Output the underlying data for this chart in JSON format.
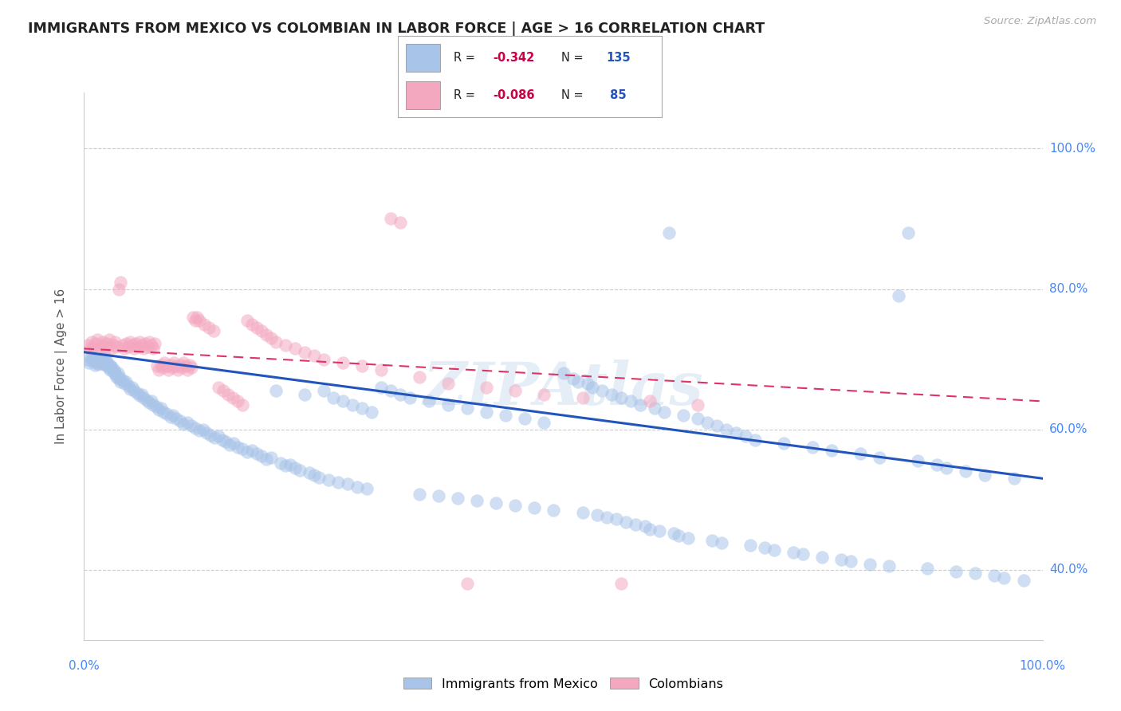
{
  "title": "IMMIGRANTS FROM MEXICO VS COLOMBIAN IN LABOR FORCE | AGE > 16 CORRELATION CHART",
  "source": "Source: ZipAtlas.com",
  "ylabel": "In Labor Force | Age > 16",
  "xlim": [
    0.0,
    1.0
  ],
  "ylim": [
    0.3,
    1.08
  ],
  "blue_color": "#a8c4e8",
  "pink_color": "#f4a8c0",
  "blue_line_color": "#2255bb",
  "pink_line_color": "#dd3366",
  "watermark": "ZIPAtlas",
  "background_color": "#ffffff",
  "grid_color": "#cccccc",
  "title_color": "#222222",
  "axis_label_color": "#4488ff",
  "legend_R_color": "#cc0044",
  "legend_N_color": "#2255bb",
  "blue_scatter": [
    [
      0.003,
      0.7
    ],
    [
      0.005,
      0.695
    ],
    [
      0.007,
      0.702
    ],
    [
      0.008,
      0.698
    ],
    [
      0.01,
      0.705
    ],
    [
      0.011,
      0.692
    ],
    [
      0.012,
      0.7
    ],
    [
      0.013,
      0.695
    ],
    [
      0.014,
      0.698
    ],
    [
      0.015,
      0.693
    ],
    [
      0.016,
      0.7
    ],
    [
      0.017,
      0.696
    ],
    [
      0.018,
      0.702
    ],
    [
      0.019,
      0.694
    ],
    [
      0.02,
      0.698
    ],
    [
      0.021,
      0.705
    ],
    [
      0.022,
      0.692
    ],
    [
      0.023,
      0.7
    ],
    [
      0.024,
      0.695
    ],
    [
      0.025,
      0.688
    ],
    [
      0.026,
      0.692
    ],
    [
      0.027,
      0.685
    ],
    [
      0.028,
      0.69
    ],
    [
      0.029,
      0.688
    ],
    [
      0.03,
      0.682
    ],
    [
      0.031,
      0.685
    ],
    [
      0.032,
      0.68
    ],
    [
      0.033,
      0.678
    ],
    [
      0.034,
      0.675
    ],
    [
      0.035,
      0.68
    ],
    [
      0.036,
      0.672
    ],
    [
      0.037,
      0.675
    ],
    [
      0.038,
      0.668
    ],
    [
      0.04,
      0.67
    ],
    [
      0.042,
      0.665
    ],
    [
      0.044,
      0.668
    ],
    [
      0.046,
      0.662
    ],
    [
      0.048,
      0.658
    ],
    [
      0.05,
      0.66
    ],
    [
      0.052,
      0.655
    ],
    [
      0.055,
      0.652
    ],
    [
      0.058,
      0.648
    ],
    [
      0.06,
      0.65
    ],
    [
      0.062,
      0.645
    ],
    [
      0.065,
      0.642
    ],
    [
      0.068,
      0.638
    ],
    [
      0.07,
      0.64
    ],
    [
      0.072,
      0.635
    ],
    [
      0.075,
      0.632
    ],
    [
      0.078,
      0.628
    ],
    [
      0.08,
      0.63
    ],
    [
      0.083,
      0.625
    ],
    [
      0.086,
      0.622
    ],
    [
      0.09,
      0.618
    ],
    [
      0.093,
      0.62
    ],
    [
      0.096,
      0.615
    ],
    [
      0.1,
      0.612
    ],
    [
      0.104,
      0.608
    ],
    [
      0.108,
      0.61
    ],
    [
      0.112,
      0.605
    ],
    [
      0.116,
      0.602
    ],
    [
      0.12,
      0.598
    ],
    [
      0.124,
      0.6
    ],
    [
      0.128,
      0.595
    ],
    [
      0.132,
      0.592
    ],
    [
      0.136,
      0.588
    ],
    [
      0.14,
      0.59
    ],
    [
      0.144,
      0.585
    ],
    [
      0.148,
      0.582
    ],
    [
      0.152,
      0.578
    ],
    [
      0.156,
      0.58
    ],
    [
      0.16,
      0.575
    ],
    [
      0.165,
      0.572
    ],
    [
      0.17,
      0.568
    ],
    [
      0.175,
      0.57
    ],
    [
      0.18,
      0.565
    ],
    [
      0.185,
      0.562
    ],
    [
      0.19,
      0.558
    ],
    [
      0.195,
      0.56
    ],
    [
      0.2,
      0.655
    ],
    [
      0.205,
      0.552
    ],
    [
      0.21,
      0.548
    ],
    [
      0.215,
      0.55
    ],
    [
      0.22,
      0.545
    ],
    [
      0.225,
      0.542
    ],
    [
      0.23,
      0.65
    ],
    [
      0.235,
      0.538
    ],
    [
      0.24,
      0.535
    ],
    [
      0.245,
      0.532
    ],
    [
      0.25,
      0.655
    ],
    [
      0.255,
      0.528
    ],
    [
      0.26,
      0.645
    ],
    [
      0.265,
      0.525
    ],
    [
      0.27,
      0.64
    ],
    [
      0.275,
      0.522
    ],
    [
      0.28,
      0.635
    ],
    [
      0.285,
      0.518
    ],
    [
      0.29,
      0.63
    ],
    [
      0.295,
      0.515
    ],
    [
      0.3,
      0.625
    ],
    [
      0.31,
      0.66
    ],
    [
      0.32,
      0.655
    ],
    [
      0.33,
      0.65
    ],
    [
      0.34,
      0.645
    ],
    [
      0.35,
      0.508
    ],
    [
      0.36,
      0.64
    ],
    [
      0.37,
      0.505
    ],
    [
      0.38,
      0.635
    ],
    [
      0.39,
      0.502
    ],
    [
      0.4,
      0.63
    ],
    [
      0.41,
      0.498
    ],
    [
      0.42,
      0.625
    ],
    [
      0.43,
      0.495
    ],
    [
      0.44,
      0.62
    ],
    [
      0.45,
      0.492
    ],
    [
      0.46,
      0.615
    ],
    [
      0.47,
      0.488
    ],
    [
      0.48,
      0.61
    ],
    [
      0.49,
      0.485
    ],
    [
      0.5,
      0.68
    ],
    [
      0.51,
      0.672
    ],
    [
      0.515,
      0.668
    ],
    [
      0.52,
      0.482
    ],
    [
      0.525,
      0.665
    ],
    [
      0.53,
      0.66
    ],
    [
      0.535,
      0.478
    ],
    [
      0.54,
      0.655
    ],
    [
      0.545,
      0.475
    ],
    [
      0.55,
      0.65
    ],
    [
      0.555,
      0.472
    ],
    [
      0.56,
      0.645
    ],
    [
      0.565,
      0.468
    ],
    [
      0.57,
      0.64
    ],
    [
      0.575,
      0.465
    ],
    [
      0.58,
      0.635
    ],
    [
      0.585,
      0.462
    ],
    [
      0.59,
      0.458
    ],
    [
      0.595,
      0.63
    ],
    [
      0.6,
      0.455
    ],
    [
      0.605,
      0.625
    ],
    [
      0.61,
      0.88
    ],
    [
      0.615,
      0.452
    ],
    [
      0.62,
      0.448
    ],
    [
      0.625,
      0.62
    ],
    [
      0.63,
      0.445
    ],
    [
      0.64,
      0.615
    ],
    [
      0.65,
      0.61
    ],
    [
      0.655,
      0.442
    ],
    [
      0.66,
      0.605
    ],
    [
      0.665,
      0.438
    ],
    [
      0.67,
      0.6
    ],
    [
      0.68,
      0.595
    ],
    [
      0.69,
      0.59
    ],
    [
      0.695,
      0.435
    ],
    [
      0.7,
      0.585
    ],
    [
      0.71,
      0.432
    ],
    [
      0.72,
      0.428
    ],
    [
      0.73,
      0.58
    ],
    [
      0.74,
      0.425
    ],
    [
      0.75,
      0.422
    ],
    [
      0.76,
      0.575
    ],
    [
      0.77,
      0.418
    ],
    [
      0.78,
      0.57
    ],
    [
      0.79,
      0.415
    ],
    [
      0.8,
      0.412
    ],
    [
      0.81,
      0.565
    ],
    [
      0.82,
      0.408
    ],
    [
      0.83,
      0.56
    ],
    [
      0.84,
      0.405
    ],
    [
      0.85,
      0.79
    ],
    [
      0.86,
      0.88
    ],
    [
      0.87,
      0.555
    ],
    [
      0.88,
      0.402
    ],
    [
      0.89,
      0.55
    ],
    [
      0.9,
      0.545
    ],
    [
      0.91,
      0.398
    ],
    [
      0.92,
      0.54
    ],
    [
      0.93,
      0.395
    ],
    [
      0.94,
      0.535
    ],
    [
      0.95,
      0.392
    ],
    [
      0.96,
      0.388
    ],
    [
      0.97,
      0.53
    ],
    [
      0.98,
      0.385
    ]
  ],
  "pink_scatter": [
    [
      0.004,
      0.72
    ],
    [
      0.006,
      0.715
    ],
    [
      0.008,
      0.725
    ],
    [
      0.01,
      0.718
    ],
    [
      0.012,
      0.722
    ],
    [
      0.014,
      0.728
    ],
    [
      0.016,
      0.715
    ],
    [
      0.018,
      0.72
    ],
    [
      0.02,
      0.725
    ],
    [
      0.022,
      0.718
    ],
    [
      0.024,
      0.722
    ],
    [
      0.026,
      0.728
    ],
    [
      0.028,
      0.715
    ],
    [
      0.03,
      0.72
    ],
    [
      0.032,
      0.725
    ],
    [
      0.034,
      0.718
    ],
    [
      0.036,
      0.8
    ],
    [
      0.038,
      0.81
    ],
    [
      0.04,
      0.72
    ],
    [
      0.042,
      0.715
    ],
    [
      0.044,
      0.722
    ],
    [
      0.046,
      0.718
    ],
    [
      0.048,
      0.725
    ],
    [
      0.05,
      0.72
    ],
    [
      0.052,
      0.715
    ],
    [
      0.054,
      0.722
    ],
    [
      0.056,
      0.718
    ],
    [
      0.058,
      0.725
    ],
    [
      0.06,
      0.72
    ],
    [
      0.062,
      0.715
    ],
    [
      0.064,
      0.722
    ],
    [
      0.066,
      0.718
    ],
    [
      0.068,
      0.725
    ],
    [
      0.07,
      0.72
    ],
    [
      0.072,
      0.715
    ],
    [
      0.074,
      0.722
    ],
    [
      0.076,
      0.69
    ],
    [
      0.078,
      0.685
    ],
    [
      0.08,
      0.692
    ],
    [
      0.082,
      0.688
    ],
    [
      0.084,
      0.695
    ],
    [
      0.086,
      0.69
    ],
    [
      0.088,
      0.685
    ],
    [
      0.09,
      0.692
    ],
    [
      0.092,
      0.688
    ],
    [
      0.094,
      0.695
    ],
    [
      0.096,
      0.69
    ],
    [
      0.098,
      0.685
    ],
    [
      0.1,
      0.692
    ],
    [
      0.102,
      0.688
    ],
    [
      0.104,
      0.695
    ],
    [
      0.106,
      0.69
    ],
    [
      0.108,
      0.685
    ],
    [
      0.11,
      0.692
    ],
    [
      0.112,
      0.688
    ],
    [
      0.114,
      0.76
    ],
    [
      0.116,
      0.755
    ],
    [
      0.118,
      0.76
    ],
    [
      0.12,
      0.755
    ],
    [
      0.125,
      0.75
    ],
    [
      0.13,
      0.745
    ],
    [
      0.135,
      0.74
    ],
    [
      0.14,
      0.66
    ],
    [
      0.145,
      0.655
    ],
    [
      0.15,
      0.65
    ],
    [
      0.155,
      0.645
    ],
    [
      0.16,
      0.64
    ],
    [
      0.165,
      0.635
    ],
    [
      0.17,
      0.755
    ],
    [
      0.175,
      0.75
    ],
    [
      0.18,
      0.745
    ],
    [
      0.185,
      0.74
    ],
    [
      0.19,
      0.735
    ],
    [
      0.195,
      0.73
    ],
    [
      0.2,
      0.725
    ],
    [
      0.21,
      0.72
    ],
    [
      0.22,
      0.715
    ],
    [
      0.23,
      0.71
    ],
    [
      0.24,
      0.705
    ],
    [
      0.25,
      0.7
    ],
    [
      0.27,
      0.695
    ],
    [
      0.29,
      0.69
    ],
    [
      0.31,
      0.685
    ],
    [
      0.32,
      0.9
    ],
    [
      0.33,
      0.895
    ],
    [
      0.35,
      0.675
    ],
    [
      0.38,
      0.665
    ],
    [
      0.4,
      0.38
    ],
    [
      0.42,
      0.66
    ],
    [
      0.45,
      0.655
    ],
    [
      0.48,
      0.65
    ],
    [
      0.52,
      0.645
    ],
    [
      0.56,
      0.38
    ],
    [
      0.59,
      0.64
    ],
    [
      0.64,
      0.635
    ]
  ],
  "blue_trend_x": [
    0.0,
    1.0
  ],
  "blue_trend_y": [
    0.71,
    0.53
  ],
  "pink_trend_x": [
    0.0,
    1.0
  ],
  "pink_trend_y": [
    0.715,
    0.64
  ]
}
